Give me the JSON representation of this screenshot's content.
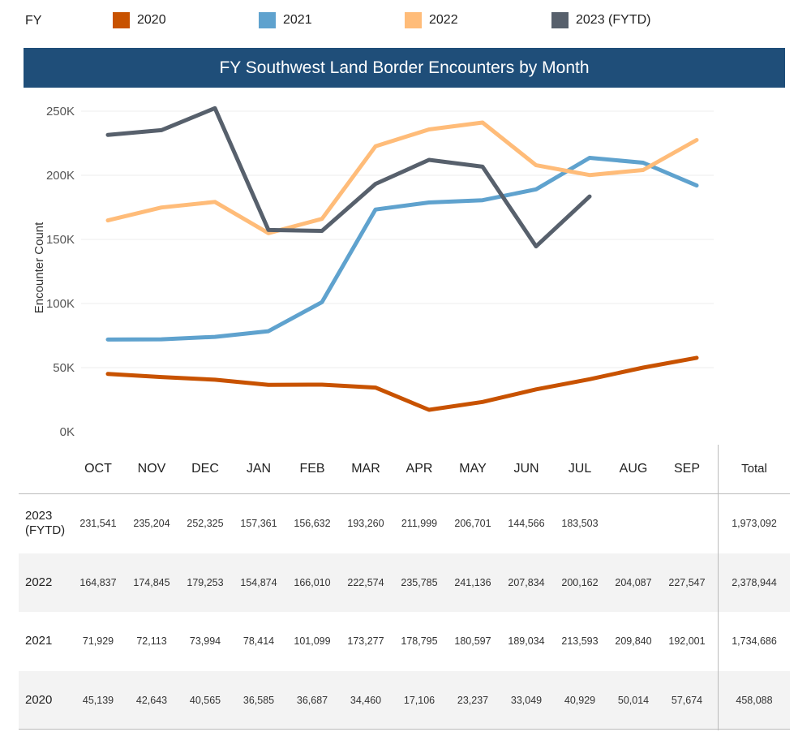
{
  "legend": {
    "label": "FY",
    "items": [
      {
        "name": "2020",
        "color": "#c85200"
      },
      {
        "name": "2021",
        "color": "#5fa2ce"
      },
      {
        "name": "2022",
        "color": "#ffbc79"
      },
      {
        "name": "2023 (FYTD)",
        "color": "#57606c"
      }
    ]
  },
  "chart_data": {
    "type": "line",
    "title": "FY Southwest Land Border Encounters by Month",
    "xlabel": "",
    "ylabel": "Encounter Count",
    "categories": [
      "OCT",
      "NOV",
      "DEC",
      "JAN",
      "FEB",
      "MAR",
      "APR",
      "MAY",
      "JUN",
      "JUL",
      "AUG",
      "SEP"
    ],
    "ylim": [
      0,
      260000
    ],
    "yticks": [
      0,
      50000,
      100000,
      150000,
      200000,
      250000
    ],
    "ytick_labels": [
      "0K",
      "50K",
      "100K",
      "150K",
      "200K",
      "250K"
    ],
    "grid": true,
    "legend_position": "top",
    "series": [
      {
        "name": "2020",
        "color": "#c85200",
        "values": [
          45139,
          42643,
          40565,
          36585,
          36687,
          34460,
          17106,
          23237,
          33049,
          40929,
          50014,
          57674
        ]
      },
      {
        "name": "2021",
        "color": "#5fa2ce",
        "values": [
          71929,
          72113,
          73994,
          78414,
          101099,
          173277,
          178795,
          180597,
          189034,
          213593,
          209840,
          192001
        ]
      },
      {
        "name": "2022",
        "color": "#ffbc79",
        "values": [
          164837,
          174845,
          179253,
          154874,
          166010,
          222574,
          235785,
          241136,
          207834,
          200162,
          204087,
          227547
        ]
      },
      {
        "name": "2023 (FYTD)",
        "color": "#57606c",
        "values": [
          231541,
          235204,
          252325,
          157361,
          156632,
          193260,
          211999,
          206701,
          144566,
          183503,
          null,
          null
        ]
      }
    ]
  },
  "table": {
    "columns": [
      "OCT",
      "NOV",
      "DEC",
      "JAN",
      "FEB",
      "MAR",
      "APR",
      "MAY",
      "JUN",
      "JUL",
      "AUG",
      "SEP"
    ],
    "total_label": "Total",
    "rows": [
      {
        "label": "2023 (FYTD)",
        "values": [
          "231,541",
          "235,204",
          "252,325",
          "157,361",
          "156,632",
          "193,260",
          "211,999",
          "206,701",
          "144,566",
          "183,503",
          "",
          ""
        ],
        "total": "1,973,092"
      },
      {
        "label": "2022",
        "values": [
          "164,837",
          "174,845",
          "179,253",
          "154,874",
          "166,010",
          "222,574",
          "235,785",
          "241,136",
          "207,834",
          "200,162",
          "204,087",
          "227,547"
        ],
        "total": "2,378,944"
      },
      {
        "label": "2021",
        "values": [
          "71,929",
          "72,113",
          "73,994",
          "78,414",
          "101,099",
          "173,277",
          "178,795",
          "180,597",
          "189,034",
          "213,593",
          "209,840",
          "192,001"
        ],
        "total": "1,734,686"
      },
      {
        "label": "2020",
        "values": [
          "45,139",
          "42,643",
          "40,565",
          "36,585",
          "36,687",
          "34,460",
          "17,106",
          "23,237",
          "33,049",
          "40,929",
          "50,014",
          "57,674"
        ],
        "total": "458,088"
      }
    ]
  }
}
